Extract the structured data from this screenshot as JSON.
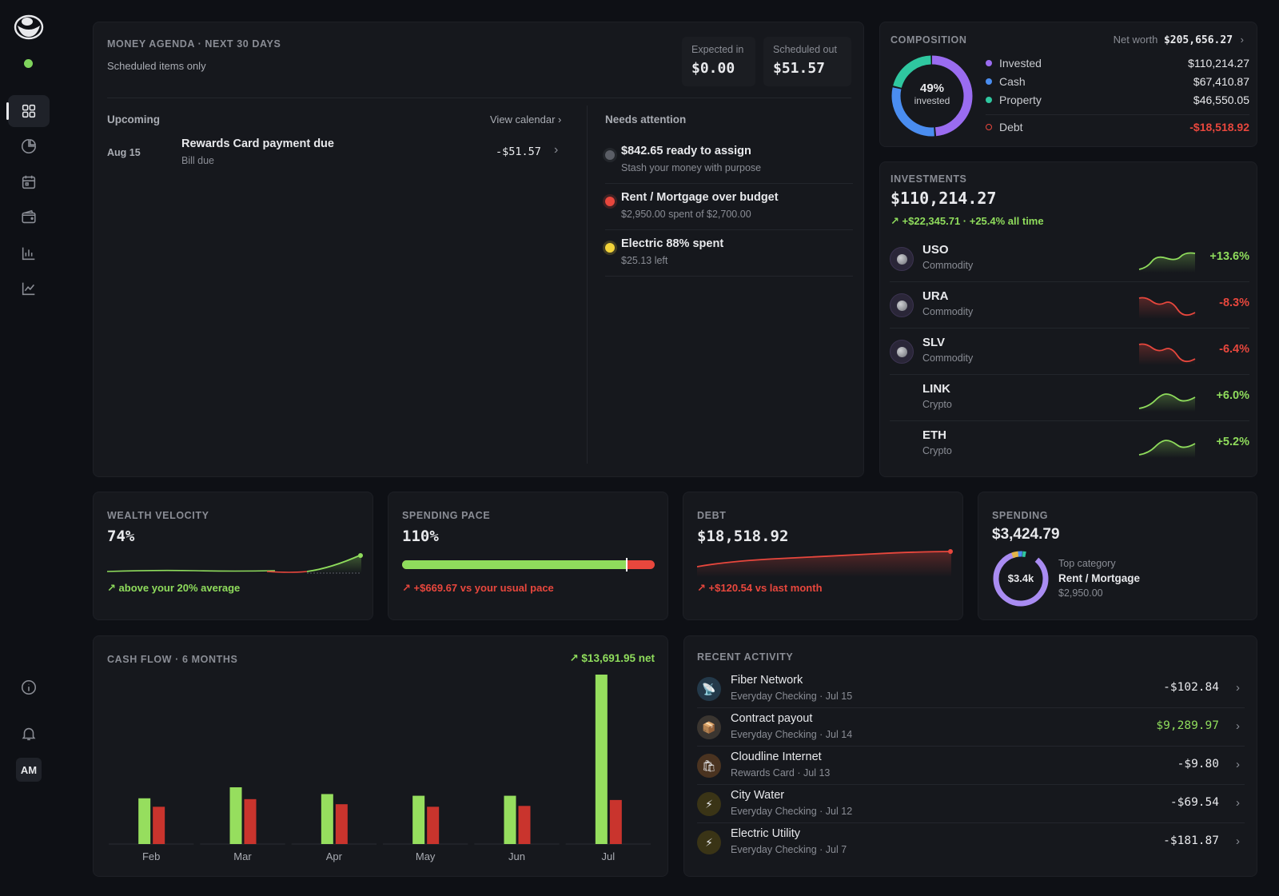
{
  "sidebar": {
    "nav": [
      "dashboard-icon",
      "pie-chart-icon",
      "calendar-icon",
      "wallet-icon",
      "bar-chart-icon",
      "line-chart-icon"
    ],
    "avatar_initials": "AM",
    "status_color": "#7fd35c"
  },
  "agenda": {
    "title": "MONEY AGENDA · NEXT 30 DAYS",
    "subtitle": "Scheduled items only",
    "expected_in_label": "Expected in",
    "expected_in_value": "$0.00",
    "scheduled_out_label": "Scheduled out",
    "scheduled_out_value": "$51.57",
    "upcoming_label": "Upcoming",
    "view_calendar": "View calendar",
    "upcoming_items": [
      {
        "date": "Aug 15",
        "title": "Rewards Card payment due",
        "subtitle": "Bill due",
        "amount": "-$51.57"
      }
    ],
    "needs_attention_label": "Needs attention",
    "attention_items": [
      {
        "title": "$842.65 ready to assign",
        "subtitle": "Stash your money with purpose",
        "color": "#5b5e66"
      },
      {
        "title": "Rent / Mortgage over budget",
        "subtitle": "$2,950.00 spent of $2,700.00",
        "color": "#e8473d"
      },
      {
        "title": "Electric 88% spent",
        "subtitle": "$25.13 left",
        "color": "#f2d33a"
      }
    ]
  },
  "composition": {
    "title": "COMPOSITION",
    "net_worth_label": "Net worth",
    "net_worth_value": "$205,656.27",
    "donut_pct": "49%",
    "donut_label": "invested",
    "items": [
      {
        "name": "Invested",
        "value": "$110,214.27",
        "color": "#9a6cf0",
        "share": 49
      },
      {
        "name": "Cash",
        "value": "$67,410.87",
        "color": "#4a8df0",
        "share": 30
      },
      {
        "name": "Property",
        "value": "$46,550.05",
        "color": "#2fc7a0",
        "share": 21
      }
    ],
    "debt": {
      "name": "Debt",
      "value": "-$18,518.92",
      "color": "#e8473d"
    }
  },
  "investments": {
    "title": "INVESTMENTS",
    "total": "$110,214.27",
    "change": "+$22,345.71 · +25.4% all time",
    "holdings": [
      {
        "symbol": "USO",
        "type": "Commodity",
        "pct": "+13.6%",
        "trend": "up",
        "icon": true
      },
      {
        "symbol": "URA",
        "type": "Commodity",
        "pct": "-8.3%",
        "trend": "down",
        "icon": true
      },
      {
        "symbol": "SLV",
        "type": "Commodity",
        "pct": "-6.4%",
        "trend": "down",
        "icon": true
      },
      {
        "symbol": "LINK",
        "type": "Crypto",
        "pct": "+6.0%",
        "trend": "up",
        "icon": false
      },
      {
        "symbol": "ETH",
        "type": "Crypto",
        "pct": "+5.2%",
        "trend": "up",
        "icon": false
      }
    ]
  },
  "wealth_velocity": {
    "title": "WEALTH VELOCITY",
    "value": "74%",
    "note": "above your 20% average"
  },
  "spending_pace": {
    "title": "SPENDING PACE",
    "value": "110%",
    "progress": 0.89,
    "note": "+$669.67 vs your usual pace"
  },
  "debt_card": {
    "title": "DEBT",
    "value": "$18,518.92",
    "note": "+$120.54 vs last month"
  },
  "spending": {
    "title": "SPENDING",
    "value": "$3,424.79",
    "donut_label": "$3.4k",
    "top_label": "Top category",
    "top_name": "Rent / Mortgage",
    "top_value": "$2,950.00"
  },
  "cash_flow": {
    "title": "CASH FLOW · 6 MONTHS",
    "net": "$13,691.95 net",
    "chart_data": {
      "type": "bar",
      "categories": [
        "Feb",
        "Mar",
        "Apr",
        "May",
        "Jun",
        "Jul"
      ],
      "series": [
        {
          "values": [
            2700,
            3350,
            2950,
            2850,
            2850,
            10000
          ],
          "color": "#96de5e"
        },
        {
          "values": [
            2200,
            2650,
            2350,
            2200,
            2250,
            2600
          ],
          "color": "#c9342d"
        }
      ],
      "ylim": [
        0,
        10000
      ]
    }
  },
  "recent": {
    "title": "RECENT ACTIVITY",
    "items": [
      {
        "name": "Fiber Network",
        "sub": "Everyday Checking · Jul 15",
        "amount": "-$102.84",
        "positive": false,
        "icon": "satellite-icon",
        "glyph": "📡",
        "bg": "#23394a"
      },
      {
        "name": "Contract payout",
        "sub": "Everyday Checking · Jul 14",
        "amount": "$9,289.97",
        "positive": true,
        "icon": "package-icon",
        "glyph": "📦",
        "bg": "#3a3530"
      },
      {
        "name": "Cloudline Internet",
        "sub": "Rewards Card · Jul 13",
        "amount": "-$9.80",
        "positive": false,
        "icon": "shopping-bag-icon",
        "glyph": "🛍",
        "bg": "#4a3320"
      },
      {
        "name": "City Water",
        "sub": "Everyday Checking · Jul 12",
        "amount": "-$69.54",
        "positive": false,
        "icon": "bolt-icon",
        "glyph": "⚡",
        "bg": "#3a3416"
      },
      {
        "name": "Electric Utility",
        "sub": "Everyday Checking · Jul 7",
        "amount": "-$181.87",
        "positive": false,
        "icon": "bolt-icon",
        "glyph": "⚡",
        "bg": "#3a3416"
      }
    ]
  }
}
